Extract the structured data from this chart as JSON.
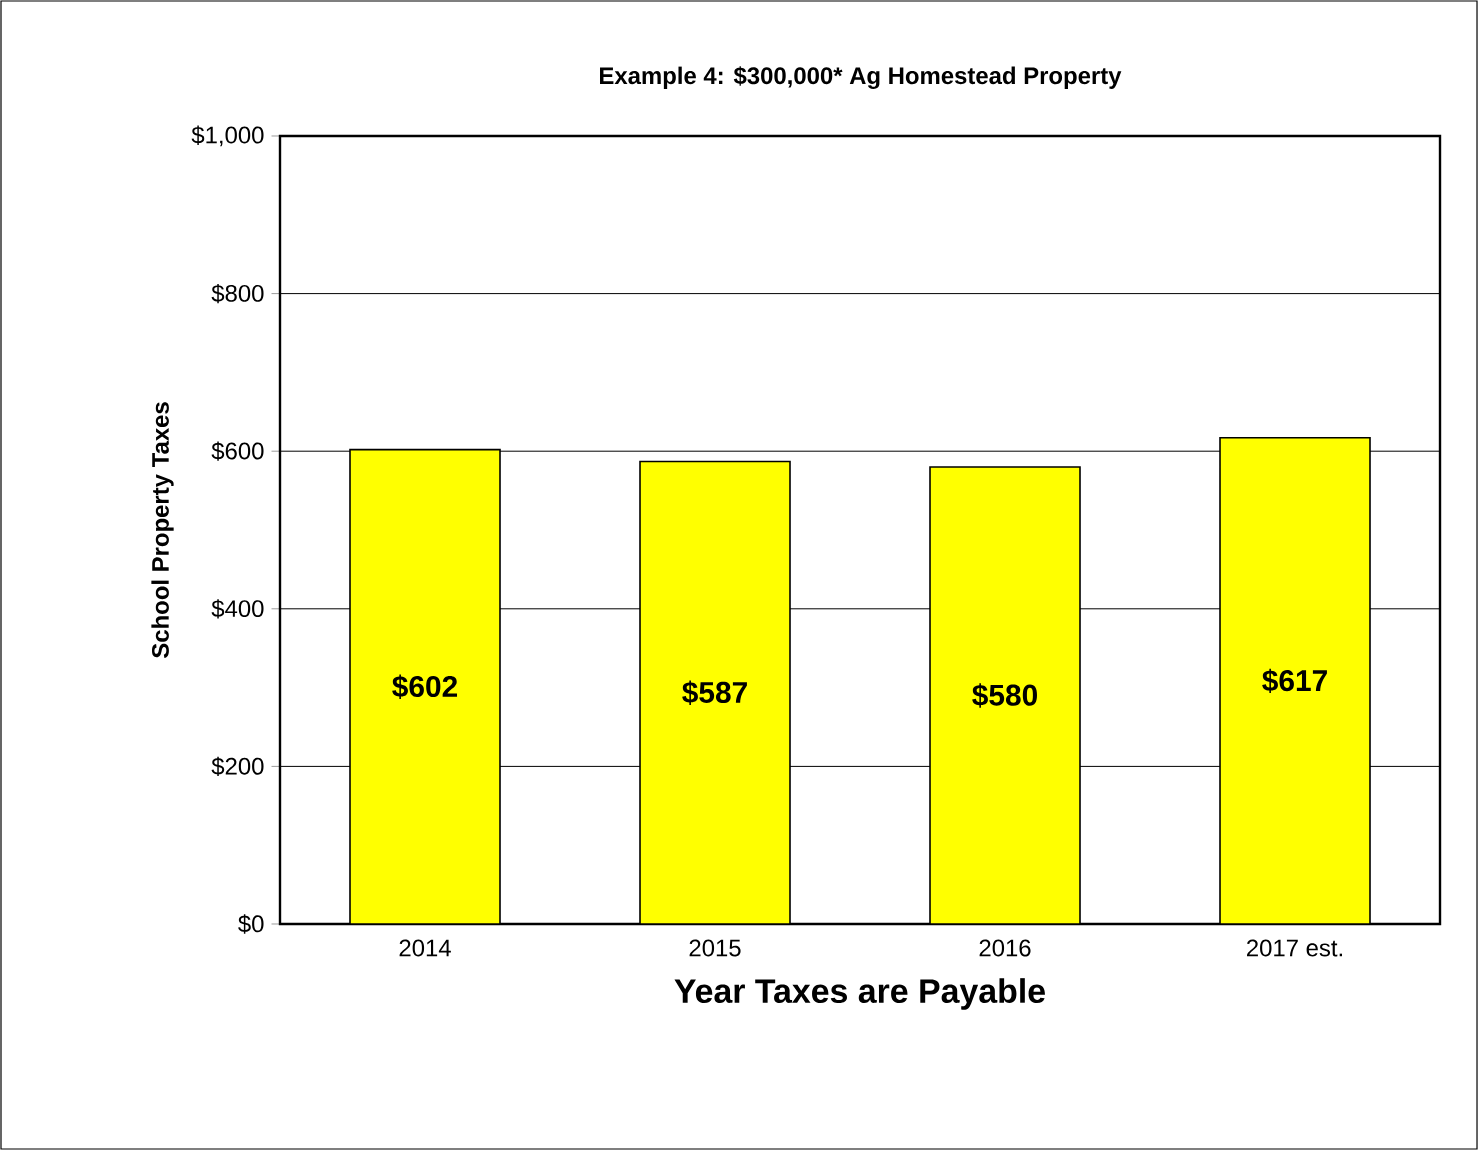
{
  "chart_data": {
    "type": "bar",
    "title": "Example 4:  $300,000* Ag Homestead Property",
    "xlabel": "Year Taxes are Payable",
    "ylabel": "School Property Taxes",
    "categories": [
      "2014",
      "2015",
      "2016",
      "2017 est."
    ],
    "values": [
      602,
      587,
      580,
      617
    ],
    "value_labels": [
      "$602",
      "$587",
      "$580",
      "$617"
    ],
    "color": "#ffff00",
    "ylim": [
      0,
      1000
    ],
    "yticks": [
      {
        "value": 0,
        "label": "$0"
      },
      {
        "value": 200,
        "label": "$200"
      },
      {
        "value": 400,
        "label": "$400"
      },
      {
        "value": 600,
        "label": "$600"
      },
      {
        "value": 800,
        "label": "$800"
      },
      {
        "value": 1000,
        "label": "$1,000"
      }
    ],
    "grid": "y"
  }
}
